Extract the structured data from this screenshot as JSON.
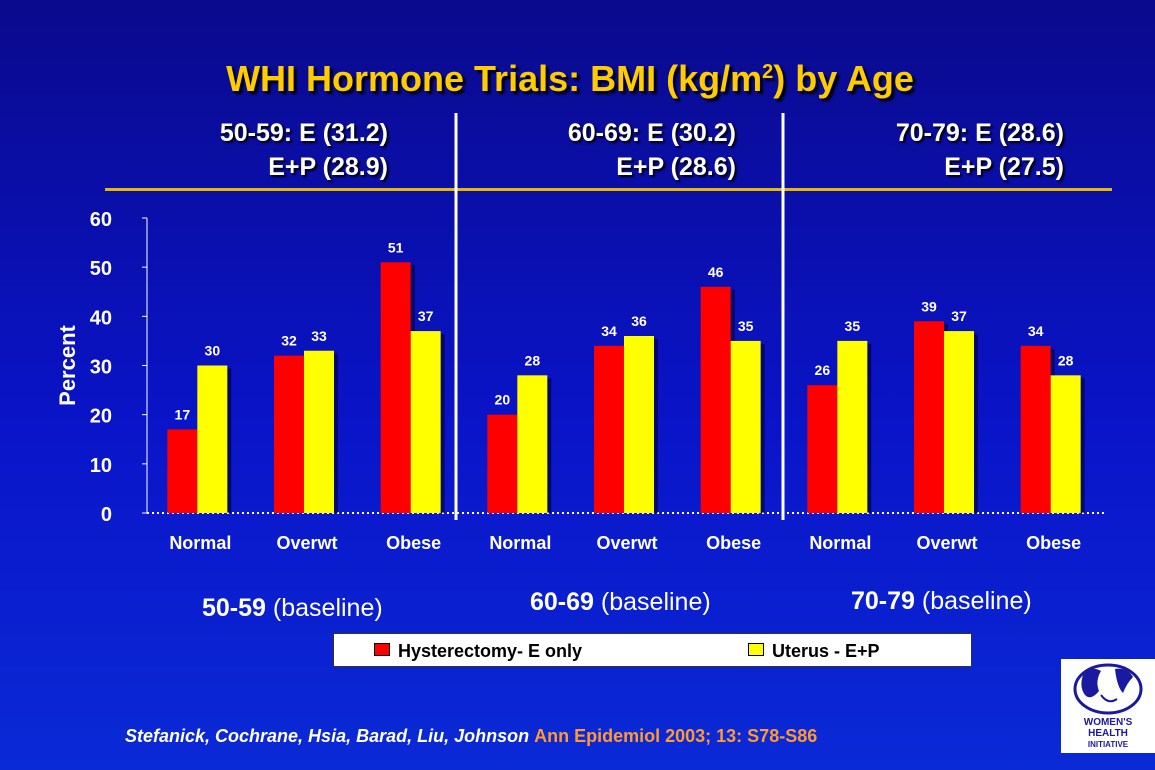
{
  "title": {
    "main": "WHI Hormone Trials: BMI (kg/m",
    "sup": "2",
    "tail": ") by Age"
  },
  "groups": [
    {
      "line1": "50-59:   E (31.2)",
      "line2": "E+P (28.9)",
      "baseline_age": "50-59",
      "baseline_word": "(baseline)"
    },
    {
      "line1": "60-69:  E (30.2)",
      "line2": "E+P (28.6)",
      "baseline_age": "60-69",
      "baseline_word": "(baseline)"
    },
    {
      "line1": "70-79:   E (28.6)",
      "line2": "E+P (27.5)",
      "baseline_age": "70-79",
      "baseline_word": "(baseline)"
    }
  ],
  "legend": {
    "e_only": "Hysterectomy- E only",
    "e_p": "Uterus - E+P"
  },
  "citation": {
    "authors": "Stefanick, Cochrane, Hsia, Barad, Liu, Johnson",
    "journal": "Ann Epidemiol 2003; 13: S78-S86"
  },
  "logo": {
    "line1": "WOMEN'S",
    "line2": "HEALTH",
    "line3": "INITIATIVE"
  },
  "colors": {
    "e_only": "#ff0000",
    "e_p": "#ffff00",
    "title": "#ffcc00",
    "citation_journal": "#ff9933"
  },
  "chart_data": {
    "type": "bar",
    "ylabel": "Percent",
    "ylim": [
      0,
      60
    ],
    "yticks": [
      0,
      10,
      20,
      30,
      40,
      50,
      60
    ],
    "categories": [
      "Normal",
      "Overwt",
      "Obese",
      "Normal",
      "Overwt",
      "Obese",
      "Normal",
      "Overwt",
      "Obese"
    ],
    "series": [
      {
        "name": "Hysterectomy- E only",
        "color": "#ff0000",
        "values": [
          17,
          32,
          51,
          20,
          34,
          46,
          26,
          39,
          34
        ]
      },
      {
        "name": "Uterus - E+P",
        "color": "#ffff00",
        "values": [
          30,
          33,
          37,
          28,
          36,
          35,
          35,
          37,
          28
        ]
      }
    ],
    "grid": false,
    "legend_position": "bottom"
  }
}
